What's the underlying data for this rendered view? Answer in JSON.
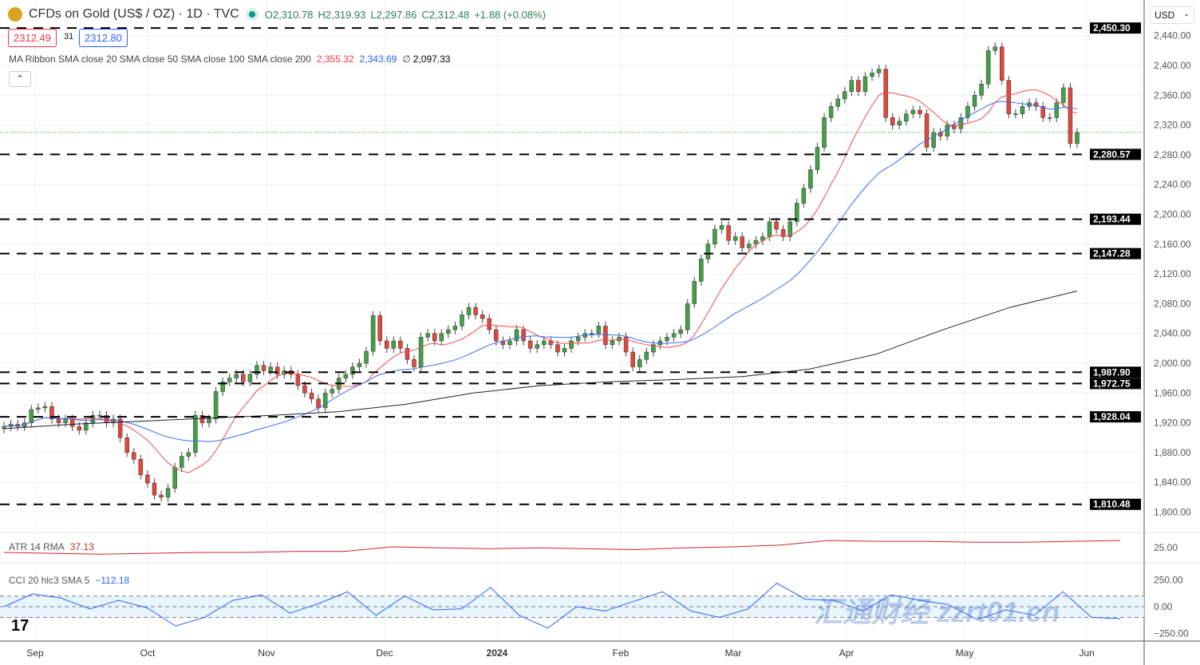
{
  "header": {
    "symbol": "CFDs on Gold (US$ / OZ) · 1D · TVC",
    "open": "O2,310.78",
    "high": "H2,319.93",
    "low": "L2,297.86",
    "close": "C2,312.48",
    "change": "+1.88 (+0.08%)",
    "sell": "2312.49",
    "spread": "31",
    "buy": "2312.80",
    "currency": "USD"
  },
  "ma_ribbon": {
    "label": "MA Ribbon SMA close 20 SMA close 50 SMA close 100 SMA close 200",
    "v20": "2,355.32",
    "v50": "2,343.69",
    "v100": "∅",
    "v200": "2,097.33"
  },
  "atr": {
    "label": "ATR 14 RMA",
    "value": "37.13",
    "axis": "25.00"
  },
  "cci": {
    "label": "CCI 20 hlc3 SMA 5",
    "value": "−112.18",
    "axis": [
      "250.00",
      "0.00",
      "−250.00"
    ]
  },
  "watermark": "汇通财经 zzrt01.cn",
  "chart_data": {
    "type": "candlestick",
    "colors": {
      "up": "#43a047",
      "down": "#e0483e",
      "sma20": "#f04a4a",
      "sma50": "#3a6df0",
      "sma200": "#222222"
    },
    "x_ticks": [
      "Sep",
      "Oct",
      "Nov",
      "Dec",
      "2024",
      "Feb",
      "Mar",
      "Apr",
      "May",
      "Jun"
    ],
    "y_ticks": [
      "2,440.00",
      "2,400.00",
      "2,360.00",
      "2,320.00",
      "2,280.00",
      "2,240.00",
      "2,200.00",
      "2,160.00",
      "2,120.00",
      "2,080.00",
      "2,040.00",
      "2,000.00",
      "1,960.00",
      "1,920.00",
      "1,880.00",
      "1,840.00",
      "1,800.00"
    ],
    "ylim": [
      1790,
      2460
    ],
    "levels": [
      "2,450.30",
      "2,280.57",
      "2,193.44",
      "2,147.28",
      "1,987.90",
      "1,972.75",
      "1,928.04",
      "1,810.48"
    ],
    "closes": [
      1915,
      1918,
      1915,
      1920,
      1938,
      1940,
      1942,
      1925,
      1920,
      1925,
      1915,
      1910,
      1920,
      1930,
      1930,
      1920,
      1925,
      1900,
      1880,
      1871,
      1850,
      1839,
      1823,
      1820,
      1832,
      1860,
      1875,
      1880,
      1930,
      1920,
      1925,
      1962,
      1975,
      1980,
      1985,
      1975,
      1985,
      1997,
      1990,
      1995,
      1985,
      1990,
      1985,
      1970,
      1960,
      1952,
      1940,
      1960,
      1965,
      1980,
      1985,
      1995,
      2000,
      2016,
      2064,
      2030,
      2020,
      2030,
      2020,
      2005,
      1995,
      2035,
      2040,
      2030,
      2040,
      2045,
      2050,
      2065,
      2075,
      2065,
      2060,
      2045,
      2030,
      2025,
      2030,
      2045,
      2030,
      2020,
      2025,
      2030,
      2025,
      2015,
      2020,
      2030,
      2035,
      2040,
      2040,
      2050,
      2025,
      2030,
      2035,
      2015,
      1995,
      2005,
      2015,
      2025,
      2030,
      2035,
      2040,
      2045,
      2080,
      2110,
      2140,
      2160,
      2180,
      2185,
      2165,
      2170,
      2155,
      2160,
      2165,
      2170,
      2190,
      2180,
      2170,
      2190,
      2215,
      2235,
      2260,
      2290,
      2330,
      2345,
      2355,
      2365,
      2380,
      2365,
      2385,
      2390,
      2395,
      2330,
      2320,
      2325,
      2335,
      2340,
      2335,
      2290,
      2310,
      2305,
      2320,
      2315,
      2330,
      2345,
      2360,
      2375,
      2420,
      2425,
      2380,
      2335,
      2335,
      2345,
      2350,
      2345,
      2330,
      2330,
      2350,
      2370,
      2295,
      2310
    ],
    "sma200": [
      1912,
      1918,
      1922,
      1926,
      1930,
      1935,
      1945,
      1960,
      1970,
      1975,
      1978,
      1982,
      1992,
      2012,
      2045,
      2075,
      2097
    ],
    "atr": [
      22,
      21,
      20,
      21,
      22,
      22,
      23,
      23,
      28,
      27,
      26,
      27,
      26,
      25,
      27,
      28,
      30,
      35,
      34,
      34,
      33,
      33,
      34,
      35
    ],
    "cci": [
      0,
      120,
      80,
      -20,
      60,
      -10,
      -180,
      -100,
      60,
      110,
      -60,
      30,
      140,
      -80,
      100,
      -30,
      -20,
      180,
      -80,
      -200,
      0,
      -40,
      50,
      140,
      -40,
      -100,
      -20,
      220,
      70,
      60,
      -40,
      110,
      60,
      20,
      -120,
      -30,
      -80,
      140,
      -100,
      -112
    ]
  }
}
